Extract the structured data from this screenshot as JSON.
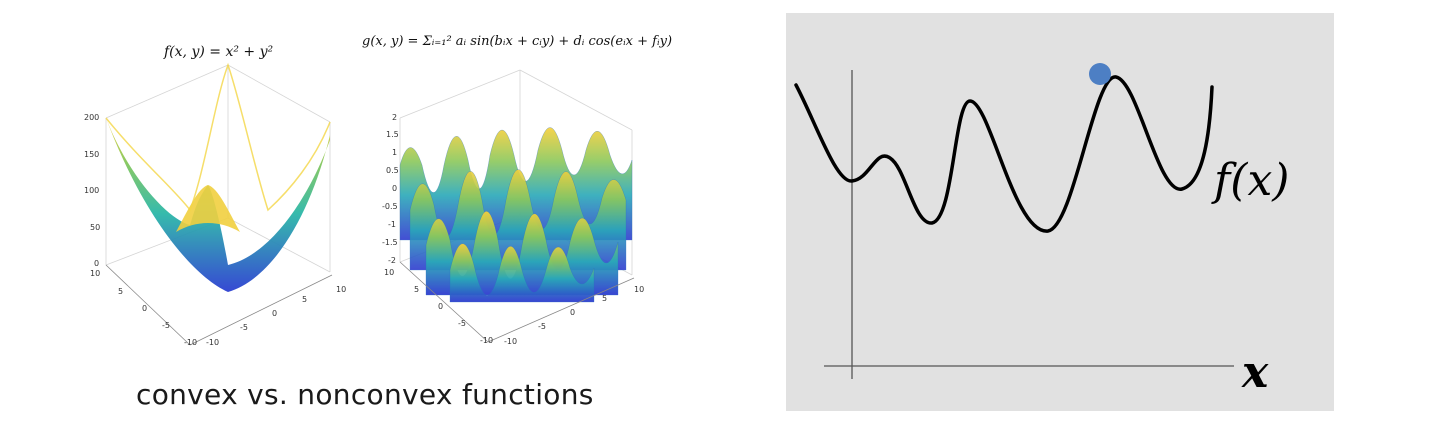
{
  "left_panel": {
    "convex_plot": {
      "equation": "f(x, y) = x² + y²",
      "z_ticks": [
        "200",
        "150",
        "100",
        "50",
        "0"
      ],
      "y_ticks": [
        "10",
        "5",
        "0",
        "-5",
        "-10"
      ],
      "x_ticks": [
        "-10",
        "-5",
        "0",
        "5",
        "10"
      ]
    },
    "nonconvex_plot": {
      "equation": "g(x, y) = Σᵢ₌₁² aᵢ sin(bᵢx + cᵢy) + dᵢ cos(eᵢx + fᵢy)",
      "z_ticks": [
        "2",
        "1.5",
        "1",
        "0.5",
        "0",
        "-0.5",
        "-1",
        "-1.5",
        "-2"
      ],
      "y_ticks": [
        "10",
        "5",
        "0",
        "-5",
        "-10"
      ],
      "x_ticks": [
        "-10",
        "-5",
        "0",
        "5",
        "10"
      ]
    },
    "caption": "convex vs. nonconvex functions"
  },
  "right_panel": {
    "function_label": "f(x)",
    "axis_label": "x",
    "background": "#e1e1e1",
    "ball_color": "#4d7fc4"
  },
  "colors": {
    "surface_low": "#2c3fd1",
    "surface_mid": "#2bb7a8",
    "surface_high": "#f7d23b"
  }
}
